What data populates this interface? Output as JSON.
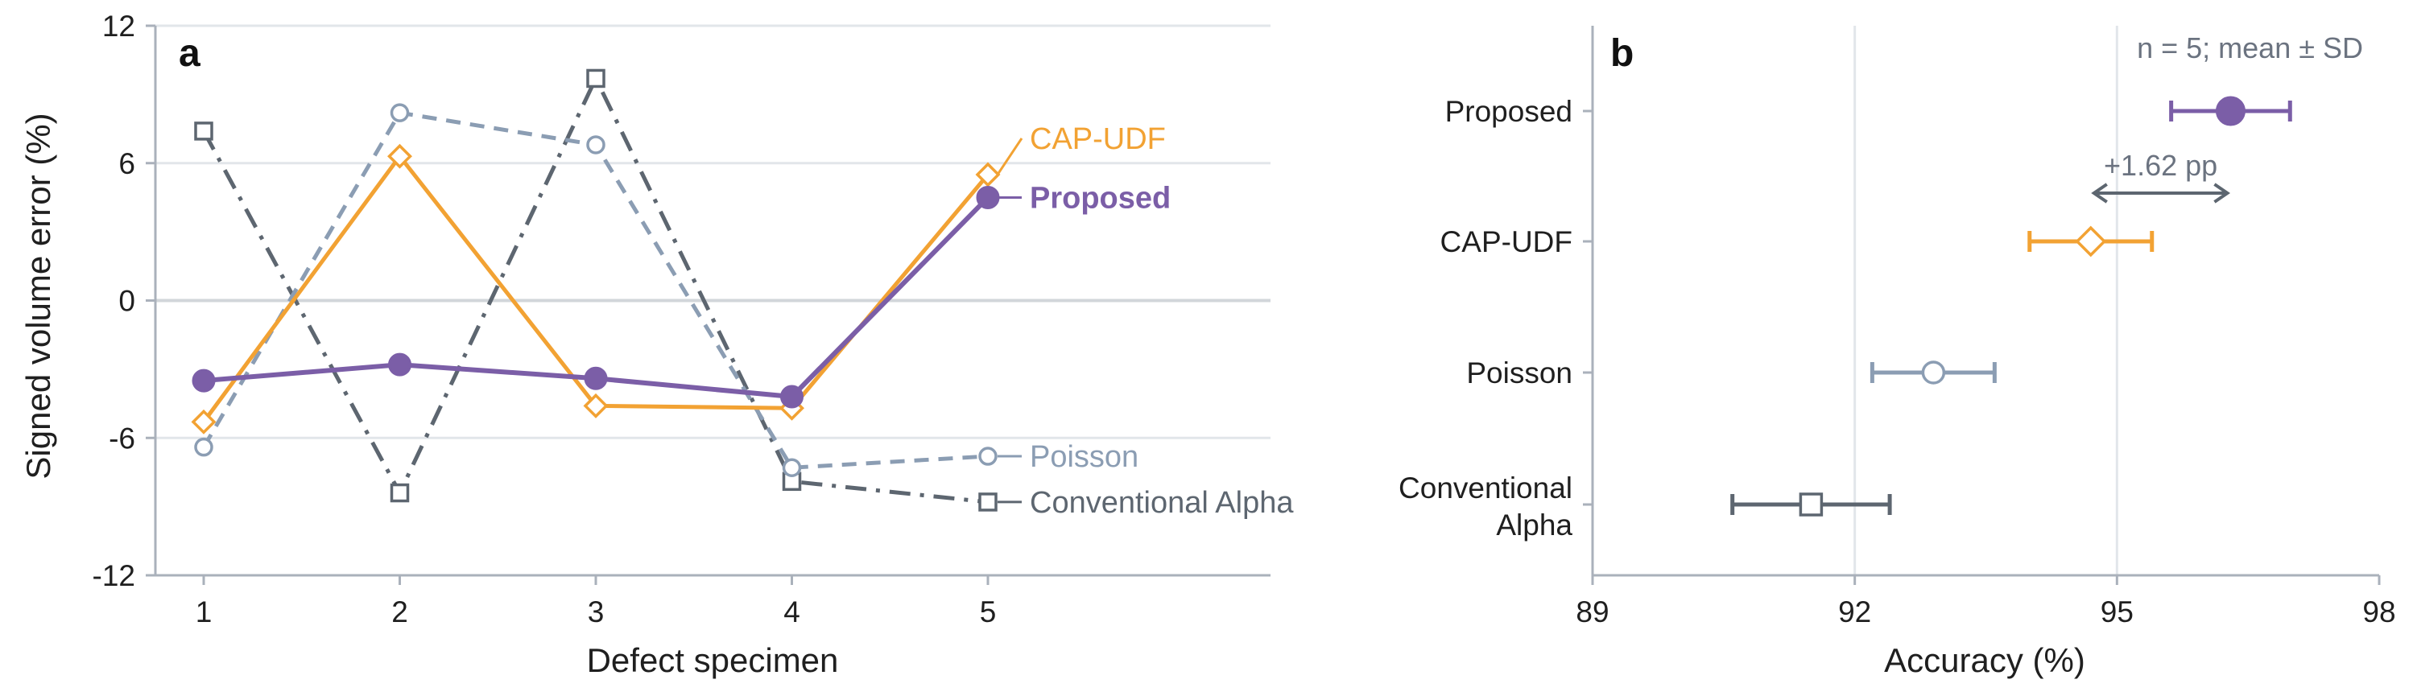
{
  "colors": {
    "proposed": "#7b5ea7",
    "cap_udf": "#f2a233",
    "poisson": "#8b9db3",
    "conventional_alpha": "#5d6670"
  },
  "chart_data": [
    {
      "type": "line",
      "panel_label": "a",
      "xlabel": "Defect specimen",
      "ylabel": "Signed volume error (%)",
      "ylim": [
        -12,
        12
      ],
      "yticks": [
        12,
        6,
        0,
        -6,
        -12
      ],
      "categories": [
        "1",
        "2",
        "3",
        "4",
        "5"
      ],
      "x": [
        1,
        2,
        3,
        4,
        5
      ],
      "grid": true,
      "series": [
        {
          "name": "CAP-UDF",
          "marker": "diamond-open",
          "line": "solid",
          "color_key": "cap_udf",
          "values": [
            -5.3,
            6.3,
            -4.6,
            -4.7,
            5.5
          ]
        },
        {
          "name": "Proposed",
          "marker": "circle-filled",
          "line": "solid",
          "color_key": "proposed",
          "bold_label": true,
          "values": [
            -3.5,
            -2.8,
            -3.4,
            -4.2,
            4.5
          ]
        },
        {
          "name": "Poisson",
          "marker": "circle-open",
          "line": "dashed",
          "color_key": "poisson",
          "values": [
            -6.4,
            8.2,
            6.8,
            -7.3,
            -6.8
          ]
        },
        {
          "name": "Conventional Alpha",
          "marker": "square-open",
          "line": "dashdot",
          "color_key": "conventional_alpha",
          "values": [
            7.4,
            -8.4,
            9.7,
            -7.9,
            -8.8
          ]
        }
      ]
    },
    {
      "type": "errorbar",
      "panel_label": "b",
      "xlabel": "Accuracy (%)",
      "xlim": [
        89,
        98
      ],
      "xticks": [
        "89",
        "92",
        "95",
        "98"
      ],
      "annotation": "n = 5; mean ± SD",
      "difference_label": "+1.62 pp",
      "difference_from": "CAP-UDF",
      "difference_to": "Proposed",
      "categories": [
        {
          "label": "Proposed",
          "mean": 96.3,
          "sd": 0.68,
          "marker": "circle-filled",
          "color_key": "proposed"
        },
        {
          "label": "CAP-UDF",
          "mean": 94.7,
          "sd": 0.7,
          "marker": "diamond-open",
          "color_key": "cap_udf"
        },
        {
          "label": "Poisson",
          "mean": 92.9,
          "sd": 0.7,
          "marker": "circle-open",
          "color_key": "poisson"
        },
        {
          "label": "Conventional Alpha",
          "mean": 91.5,
          "sd": 0.9,
          "marker": "square-open",
          "color_key": "conventional_alpha"
        }
      ]
    }
  ]
}
